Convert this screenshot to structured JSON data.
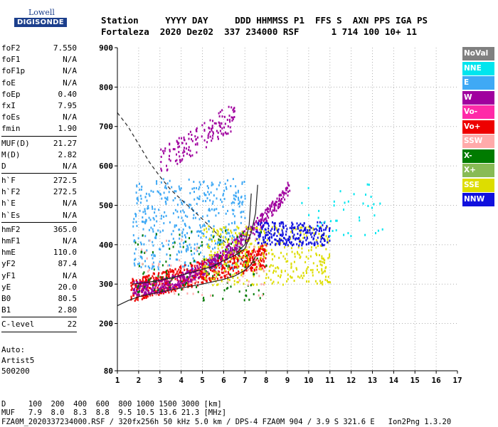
{
  "logo": {
    "line1": "Lowell",
    "line2": "DIGISONDE"
  },
  "header": {
    "line1": "Station     YYYY DAY     DDD HHMMSS P1  FFS S  AXN PPS IGA PS",
    "line2": "Fortaleza  2020 Dez02  337 234000 RSF      1 714 100 10+ 11"
  },
  "params": [
    {
      "name": "foF2",
      "value": "7.550"
    },
    {
      "name": "foF1",
      "value": "N/A"
    },
    {
      "name": "foF1p",
      "value": "N/A"
    },
    {
      "name": "foE",
      "value": "N/A"
    },
    {
      "name": "foEp",
      "value": "0.40"
    },
    {
      "name": "fxI",
      "value": "7.95"
    },
    {
      "name": "foEs",
      "value": "N/A"
    },
    {
      "name": "fmin",
      "value": "1.90"
    },
    {
      "sep": true
    },
    {
      "name": "MUF(D)",
      "value": "21.27"
    },
    {
      "name": "M(D)",
      "value": "2.82"
    },
    {
      "name": "D",
      "value": "N/A"
    },
    {
      "sep": true
    },
    {
      "name": "h`F",
      "value": "272.5"
    },
    {
      "name": "h`F2",
      "value": "272.5"
    },
    {
      "name": "h`E",
      "value": "N/A"
    },
    {
      "name": "h`Es",
      "value": "N/A"
    },
    {
      "sep": true
    },
    {
      "name": "hmF2",
      "value": "365.0"
    },
    {
      "name": "hmF1",
      "value": "N/A"
    },
    {
      "name": "hmE",
      "value": "110.0"
    },
    {
      "name": "yF2",
      "value": "87.4"
    },
    {
      "name": "yF1",
      "value": "N/A"
    },
    {
      "name": "yE",
      "value": "20.0"
    },
    {
      "name": "B0",
      "value": "80.5"
    },
    {
      "name": "B1",
      "value": "2.80"
    },
    {
      "sep": true
    },
    {
      "name": "C-level",
      "value": "22"
    },
    {
      "sep": true
    }
  ],
  "autoscale": {
    "line1": "Auto:",
    "line2": "Artist5",
    "line3": "500200"
  },
  "legend": [
    {
      "label": "NoVal",
      "color": "#808080"
    },
    {
      "label": "NNE",
      "color": "#00e5ee"
    },
    {
      "label": "E",
      "color": "#3fa9f5"
    },
    {
      "label": "W",
      "color": "#a0009e"
    },
    {
      "label": "Vo-",
      "color": "#ff2aa8"
    },
    {
      "label": "Vo+",
      "color": "#ee0000"
    },
    {
      "label": "SSW",
      "color": "#ffaaaa"
    },
    {
      "label": "X-",
      "color": "#007b00"
    },
    {
      "label": "X+",
      "color": "#88bb55"
    },
    {
      "label": "SSE",
      "color": "#dddd00"
    },
    {
      "label": "NNW",
      "color": "#1010dd"
    }
  ],
  "footer": {
    "d_line": "D     100  200  400  600  800 1000 1500 3000 [km]",
    "muf_line": "MUF   7.9  8.0  8.3  8.8  9.5 10.5 13.6 21.3 [MHz]",
    "file_line": "FZA0M_2020337234000.RSF / 320fx256h 50 kHz 5.0 km / DPS-4 FZA0M 904 / 3.9 S 321.6 E   Ion2Png 1.3.20"
  },
  "chart_data": {
    "type": "scatter",
    "xlim": [
      1,
      17
    ],
    "ylim": [
      80,
      900
    ],
    "xticks": [
      1,
      2,
      3,
      4,
      5,
      6,
      7,
      8,
      9,
      10,
      11,
      12,
      13,
      14,
      15,
      16,
      17
    ],
    "yticks": [
      80,
      200,
      300,
      400,
      500,
      600,
      700,
      800,
      900
    ],
    "grid": true,
    "fitted_curves": {
      "muf_dashed": [
        [
          1.0,
          735
        ],
        [
          1.5,
          700
        ],
        [
          2.0,
          655
        ],
        [
          2.5,
          610
        ],
        [
          3.0,
          573
        ],
        [
          3.5,
          540
        ],
        [
          4.0,
          515
        ],
        [
          4.5,
          490
        ],
        [
          5.0,
          465
        ],
        [
          5.5,
          438
        ],
        [
          6.0,
          410
        ],
        [
          6.5,
          385
        ],
        [
          7.0,
          352
        ]
      ],
      "profile_lower": [
        [
          1.0,
          245
        ],
        [
          1.5,
          258
        ],
        [
          2.0,
          268
        ],
        [
          3.0,
          280
        ],
        [
          4.0,
          290
        ],
        [
          5.0,
          300
        ],
        [
          6.0,
          312
        ],
        [
          6.5,
          320
        ],
        [
          7.0,
          335
        ],
        [
          7.3,
          350
        ],
        [
          7.5,
          370
        ]
      ],
      "profile_upper": [
        [
          1.7,
          300
        ],
        [
          2.5,
          305
        ],
        [
          3.5,
          315
        ],
        [
          4.5,
          330
        ],
        [
          5.5,
          345
        ],
        [
          6.0,
          360
        ],
        [
          6.5,
          372
        ],
        [
          7.0,
          390
        ],
        [
          7.3,
          430
        ],
        [
          7.5,
          480
        ],
        [
          7.6,
          552
        ]
      ],
      "profile_inner": [
        [
          6.6,
          380
        ],
        [
          7.0,
          400
        ],
        [
          7.2,
          450
        ],
        [
          7.3,
          530
        ]
      ]
    },
    "trace_clusters": [
      {
        "legend": "W",
        "x": [
          3.0,
          6.5
        ],
        "y": [
          600,
          790
        ],
        "density": 150
      },
      {
        "legend": "E",
        "x": [
          1.7,
          7.0
        ],
        "y": [
          340,
          570
        ],
        "density": 500
      },
      {
        "legend": "Vo+",
        "x": [
          1.6,
          8.0
        ],
        "y": [
          265,
          420
        ],
        "density": 700
      },
      {
        "legend": "W",
        "x": [
          1.7,
          9.1
        ],
        "y": [
          275,
          600
        ],
        "density": 600
      },
      {
        "legend": "SSE",
        "x": [
          5.0,
          11.0
        ],
        "y": [
          300,
          450
        ],
        "density": 400
      },
      {
        "legend": "NNW",
        "x": [
          7.5,
          11.0
        ],
        "y": [
          400,
          460
        ],
        "density": 250
      },
      {
        "legend": "X-",
        "x": [
          1.8,
          8.0
        ],
        "y": [
          260,
          440
        ],
        "density": 120
      },
      {
        "legend": "NNE",
        "x": [
          9.5,
          13.5
        ],
        "y": [
          420,
          560
        ],
        "density": 40
      },
      {
        "legend": "SSW",
        "x": [
          2.0,
          8.0
        ],
        "y": [
          270,
          420
        ],
        "density": 80
      }
    ]
  }
}
